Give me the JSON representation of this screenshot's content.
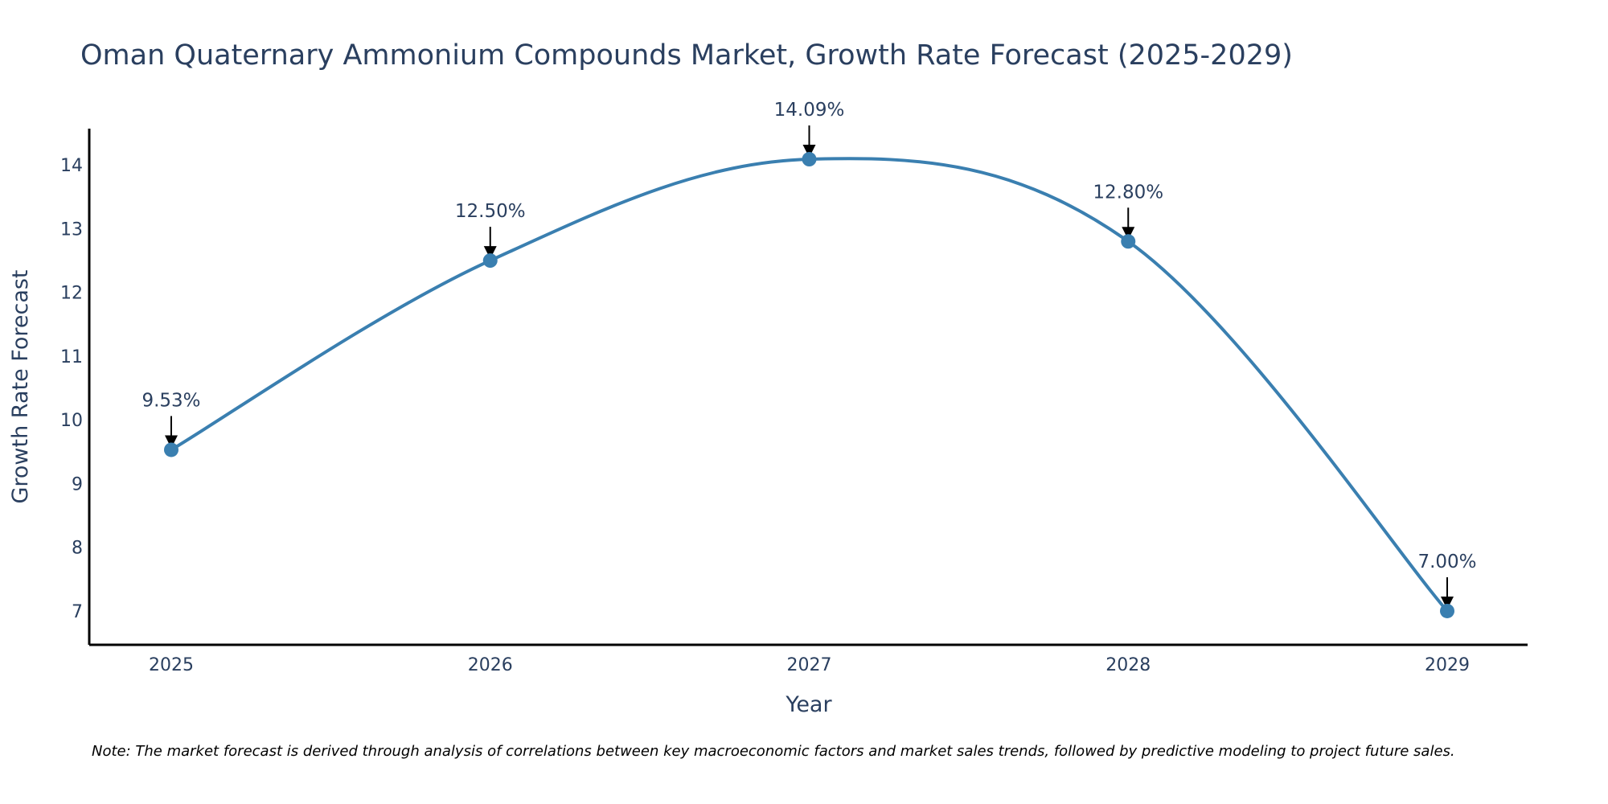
{
  "chart_data": {
    "type": "line",
    "title": "Oman Quaternary Ammonium Compounds Market, Growth Rate Forecast (2025-2029)",
    "xlabel": "Year",
    "ylabel": "Growth Rate Forecast",
    "categories": [
      "2025",
      "2026",
      "2027",
      "2028",
      "2029"
    ],
    "series": [
      {
        "name": "Growth Rate Forecast",
        "values": [
          9.53,
          12.5,
          14.09,
          12.8,
          7.0
        ]
      }
    ],
    "data_labels": [
      "9.53%",
      "12.50%",
      "14.09%",
      "12.80%",
      "7.00%"
    ],
    "y_ticks": [
      "7",
      "8",
      "9",
      "10",
      "11",
      "12",
      "13",
      "14"
    ],
    "ylim": [
      6.47,
      14.57
    ],
    "grid": false,
    "line_color": "#3a7fb0",
    "marker_color": "#3a7fb0",
    "arrow_color": "#000000",
    "note": "Note: The market forecast is derived through analysis of correlations between key macroeconomic factors and market sales trends, followed by predictive modeling to project future sales."
  }
}
